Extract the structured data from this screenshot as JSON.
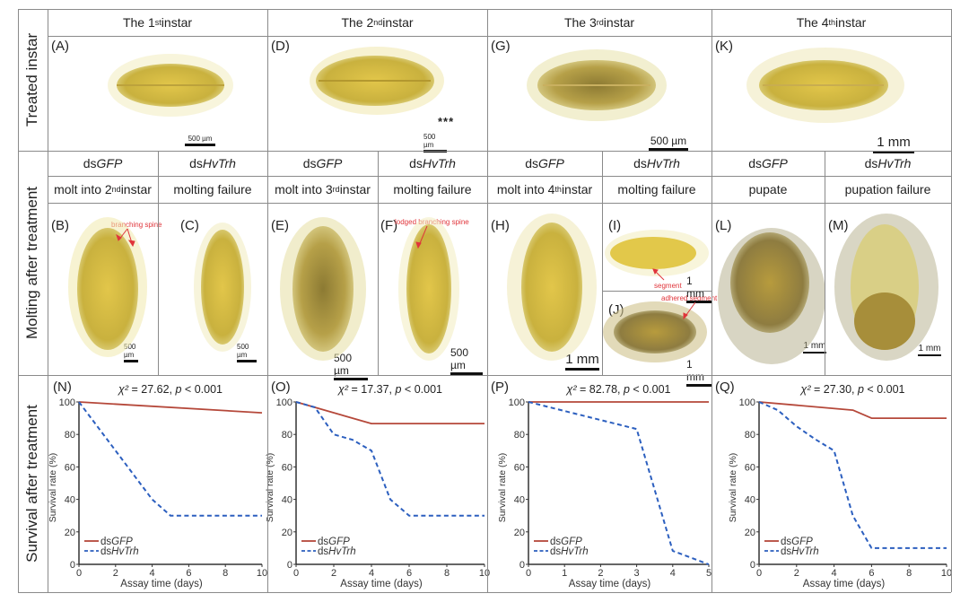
{
  "row_labels": {
    "treated": "Treated instar",
    "molting": "Molting  after treatment",
    "survival": "Survival  after treatment"
  },
  "instars": [
    {
      "pre": "The 1",
      "sup": "st",
      "post": " instar"
    },
    {
      "pre": "The 2",
      "sup": "nd",
      "post": " instar"
    },
    {
      "pre": "The 3",
      "sup": "rd",
      "post": " instar"
    },
    {
      "pre": "The 4",
      "sup": "th",
      "post": " instar"
    }
  ],
  "treated_panels": [
    {
      "letter": "(A)",
      "scale": "500 µm"
    },
    {
      "letter": "(D)",
      "scale": "500 µm",
      "mark": "***"
    },
    {
      "letter": "(G)",
      "scale": "500 µm"
    },
    {
      "letter": "(K)",
      "scale": "1 mm"
    }
  ],
  "groups": {
    "ctrl_prefix": "ds",
    "ctrl_gene": "GFP",
    "trt_prefix": "ds",
    "trt_gene": "HvTrh"
  },
  "outcomes": [
    {
      "pre": "molt into 2",
      "sup": "nd",
      "post": " instar"
    },
    {
      "pre": "molting failure",
      "sup": "",
      "post": ""
    },
    {
      "pre": "molt into 3",
      "sup": "rd",
      "post": " instar"
    },
    {
      "pre": "molting failure",
      "sup": "",
      "post": ""
    },
    {
      "pre": "molt into 4",
      "sup": "th",
      "post": " instar"
    },
    {
      "pre": "molting failure",
      "sup": "",
      "post": ""
    },
    {
      "pre": "pupate",
      "sup": "",
      "post": ""
    },
    {
      "pre": "pupation failure",
      "sup": "",
      "post": ""
    }
  ],
  "molt_panels": [
    {
      "letter": "(B)",
      "scale": "500 µm",
      "note": "branching spine"
    },
    {
      "letter": "(C)",
      "scale": "500 µm"
    },
    {
      "letter": "(E)",
      "scale": "500 µm"
    },
    {
      "letter": "(F)",
      "scale": "500 µm",
      "note": "lodged branching spine"
    },
    {
      "letter": "(H)",
      "scale": "1 mm"
    },
    {
      "letter": "(I)",
      "scale": "1 mm",
      "note": "segment"
    },
    {
      "letter": "(J)",
      "scale": "1 mm",
      "note": "adhered segment"
    },
    {
      "letter": "(L)",
      "scale": "1 mm"
    },
    {
      "letter": "(M)",
      "scale": "1 mm"
    }
  ],
  "colors": {
    "ctrl": "#b5483a",
    "trt": "#2c5fbf",
    "grid": "#8a8a8a",
    "note": "#e0353b"
  },
  "chart_data": [
    {
      "type": "line",
      "panel": "(N)",
      "title": "χ² = 27.62, p < 0.001",
      "stat_label": "χ²",
      "stat_value": "27.62",
      "p_text": "p < 0.001",
      "xlabel": "Assay time   (days)",
      "ylabel": "Survival rate  (%)",
      "xlim": [
        0,
        10
      ],
      "ylim": [
        0,
        100
      ],
      "xticks": [
        0,
        2,
        4,
        6,
        8,
        10
      ],
      "yticks": [
        0,
        20,
        40,
        60,
        80,
        100
      ],
      "legend": "bottom-left",
      "series": [
        {
          "name": "dsGFP",
          "prefix": "ds",
          "gene": "GFP",
          "style": "solid",
          "x": [
            0,
            10
          ],
          "y": [
            100,
            93.3
          ]
        },
        {
          "name": "dsHvTrh",
          "prefix": "ds",
          "gene": "HvTrh",
          "style": "dashed",
          "x": [
            0,
            2,
            4,
            5,
            10
          ],
          "y": [
            100,
            70,
            40,
            30,
            30
          ]
        }
      ]
    },
    {
      "type": "line",
      "panel": "(O)",
      "title": "χ² = 17.37, p < 0.001",
      "stat_label": "χ²",
      "stat_value": "17.37",
      "p_text": "p < 0.001",
      "xlabel": "Assay time   (days)",
      "ylabel": "Survival rate  (%)",
      "xlim": [
        0,
        10
      ],
      "ylim": [
        0,
        100
      ],
      "xticks": [
        0,
        2,
        4,
        6,
        8,
        10
      ],
      "yticks": [
        0,
        20,
        40,
        60,
        80,
        100
      ],
      "legend": "bottom-left",
      "series": [
        {
          "name": "dsGFP",
          "prefix": "ds",
          "gene": "GFP",
          "style": "solid",
          "x": [
            0,
            4,
            10
          ],
          "y": [
            100,
            86.7,
            86.7
          ]
        },
        {
          "name": "dsHvTrh",
          "prefix": "ds",
          "gene": "HvTrh",
          "style": "dashed",
          "x": [
            0,
            1,
            2,
            3,
            4,
            5,
            6,
            10
          ],
          "y": [
            100,
            96.7,
            80,
            76.7,
            70,
            40,
            30,
            30
          ]
        }
      ]
    },
    {
      "type": "line",
      "panel": "(P)",
      "title": "χ² = 82.78, p < 0.001",
      "stat_label": "χ²",
      "stat_value": "82.78",
      "p_text": "p < 0.001",
      "xlabel": "Assay time   (days)",
      "ylabel": "Survival rate  (%)",
      "xlim": [
        0,
        5
      ],
      "ylim": [
        0,
        100
      ],
      "xticks": [
        0,
        1,
        2,
        3,
        4,
        5
      ],
      "yticks": [
        0,
        20,
        40,
        60,
        80,
        100
      ],
      "legend": "bottom-left",
      "series": [
        {
          "name": "dsGFP",
          "prefix": "ds",
          "gene": "GFP",
          "style": "solid",
          "x": [
            0,
            5
          ],
          "y": [
            100,
            100
          ]
        },
        {
          "name": "dsHvTrh",
          "prefix": "ds",
          "gene": "HvTrh",
          "style": "dashed",
          "x": [
            0,
            3,
            4,
            5
          ],
          "y": [
            100,
            83.3,
            8.3,
            0
          ]
        }
      ]
    },
    {
      "type": "line",
      "panel": "(Q)",
      "title": "χ² = 27.30, p < 0.001",
      "stat_label": "χ²",
      "stat_value": "27.30",
      "p_text": "p < 0.001",
      "xlabel": "Assay time   (days)",
      "ylabel": "Survival rate  (%)",
      "xlim": [
        0,
        10
      ],
      "ylim": [
        0,
        100
      ],
      "xticks": [
        0,
        2,
        4,
        6,
        8,
        10
      ],
      "yticks": [
        0,
        20,
        40,
        60,
        80,
        100
      ],
      "legend": "bottom-left",
      "series": [
        {
          "name": "dsGFP",
          "prefix": "ds",
          "gene": "GFP",
          "style": "solid",
          "x": [
            0,
            5,
            6,
            10
          ],
          "y": [
            100,
            95,
            90,
            90
          ]
        },
        {
          "name": "dsHvTrh",
          "prefix": "ds",
          "gene": "HvTrh",
          "style": "dashed",
          "x": [
            0,
            1,
            2,
            3,
            4,
            5,
            6,
            10
          ],
          "y": [
            100,
            95,
            85,
            77,
            70,
            30,
            10,
            10
          ]
        }
      ]
    }
  ]
}
